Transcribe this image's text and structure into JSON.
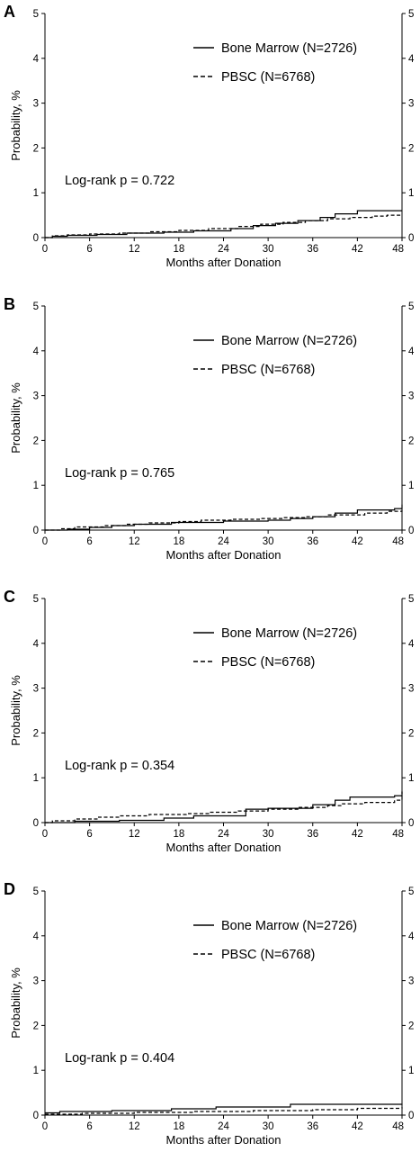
{
  "chart_data": [
    {
      "type": "line",
      "panel_label": "A",
      "xlabel": "Months after Donation",
      "ylabel": "Probability, %",
      "xlim": [
        0,
        48
      ],
      "ylim": [
        0,
        5
      ],
      "xticks": [
        "0",
        "6",
        "12",
        "18",
        "24",
        "30",
        "36",
        "42",
        "48"
      ],
      "yticks": [
        "0",
        "1",
        "2",
        "3",
        "4",
        "5"
      ],
      "annotation": "Log-rank p = 0.722",
      "legend_position": "top-right",
      "series": [
        {
          "name": "Bone Marrow (N=2726)",
          "style": "solid",
          "x": [
            0,
            1,
            3,
            7,
            11,
            16,
            20,
            25,
            28,
            31,
            34,
            37,
            39,
            42,
            48
          ],
          "y": [
            0,
            0.03,
            0.05,
            0.07,
            0.1,
            0.12,
            0.15,
            0.2,
            0.27,
            0.32,
            0.38,
            0.45,
            0.53,
            0.6,
            0.6
          ]
        },
        {
          "name": "PBSC (N=6768)",
          "style": "dashed",
          "x": [
            0,
            1,
            3,
            6,
            10,
            14,
            18,
            22,
            26,
            29,
            32,
            35,
            38,
            41,
            44,
            46,
            48
          ],
          "y": [
            0,
            0.04,
            0.06,
            0.08,
            0.1,
            0.13,
            0.16,
            0.2,
            0.25,
            0.3,
            0.34,
            0.38,
            0.42,
            0.45,
            0.48,
            0.5,
            0.5
          ]
        }
      ]
    },
    {
      "type": "line",
      "panel_label": "B",
      "xlabel": "Months after Donation",
      "ylabel": "Probability, %",
      "xlim": [
        0,
        48
      ],
      "ylim": [
        0,
        5
      ],
      "xticks": [
        "0",
        "6",
        "12",
        "18",
        "24",
        "30",
        "36",
        "42",
        "48"
      ],
      "yticks": [
        "0",
        "1",
        "2",
        "3",
        "4",
        "5"
      ],
      "annotation": "Log-rank p = 0.765",
      "legend_position": "top-right",
      "series": [
        {
          "name": "Bone Marrow (N=2726)",
          "style": "solid",
          "x": [
            0,
            3,
            6,
            9,
            12,
            17,
            24,
            30,
            33,
            36,
            39,
            42,
            47,
            48
          ],
          "y": [
            0,
            0.02,
            0.06,
            0.1,
            0.13,
            0.17,
            0.2,
            0.22,
            0.26,
            0.3,
            0.38,
            0.45,
            0.48,
            0.57
          ]
        },
        {
          "name": "PBSC (N=6768)",
          "style": "dashed",
          "x": [
            0,
            2,
            4,
            8,
            11,
            14,
            18,
            21,
            25,
            29,
            32,
            35,
            38,
            43,
            46,
            48
          ],
          "y": [
            0,
            0.03,
            0.07,
            0.1,
            0.13,
            0.16,
            0.19,
            0.22,
            0.24,
            0.26,
            0.28,
            0.3,
            0.34,
            0.38,
            0.42,
            0.45
          ]
        }
      ]
    },
    {
      "type": "line",
      "panel_label": "C",
      "xlabel": "Months after Donation",
      "ylabel": "Probability, %",
      "xlim": [
        0,
        48
      ],
      "ylim": [
        0,
        5
      ],
      "xticks": [
        "0",
        "6",
        "12",
        "18",
        "24",
        "30",
        "36",
        "42",
        "48"
      ],
      "yticks": [
        "0",
        "1",
        "2",
        "3",
        "4",
        "5"
      ],
      "annotation": "Log-rank p = 0.354",
      "legend_position": "top-right",
      "series": [
        {
          "name": "Bone Marrow (N=2726)",
          "style": "solid",
          "x": [
            0,
            4,
            10,
            16,
            20,
            27,
            30,
            36,
            39,
            41,
            47,
            48
          ],
          "y": [
            0,
            0.03,
            0.05,
            0.1,
            0.15,
            0.3,
            0.32,
            0.4,
            0.5,
            0.57,
            0.6,
            0.68
          ]
        },
        {
          "name": "PBSC (N=6768)",
          "style": "dashed",
          "x": [
            0,
            1,
            4,
            7,
            10,
            14,
            19,
            22,
            26,
            30,
            34,
            38,
            40,
            43,
            47,
            48
          ],
          "y": [
            0,
            0.04,
            0.08,
            0.12,
            0.15,
            0.18,
            0.2,
            0.23,
            0.26,
            0.3,
            0.34,
            0.38,
            0.42,
            0.45,
            0.5,
            0.7
          ]
        }
      ]
    },
    {
      "type": "line",
      "panel_label": "D",
      "xlabel": "Months after Donation",
      "ylabel": "Probability, %",
      "xlim": [
        0,
        48
      ],
      "ylim": [
        0,
        5
      ],
      "xticks": [
        "0",
        "6",
        "12",
        "18",
        "24",
        "30",
        "36",
        "42",
        "48"
      ],
      "yticks": [
        "0",
        "1",
        "2",
        "3",
        "4",
        "5"
      ],
      "annotation": "Log-rank p = 0.404",
      "legend_position": "top-right",
      "series": [
        {
          "name": "Bone Marrow (N=2726)",
          "style": "solid",
          "x": [
            0,
            2,
            9,
            17,
            23,
            33,
            48
          ],
          "y": [
            0.05,
            0.08,
            0.1,
            0.14,
            0.18,
            0.24,
            0.25
          ]
        },
        {
          "name": "PBSC (N=6768)",
          "style": "dashed",
          "x": [
            0,
            5,
            12,
            20,
            28,
            36,
            42,
            48
          ],
          "y": [
            0.02,
            0.04,
            0.06,
            0.08,
            0.1,
            0.12,
            0.15,
            0.18
          ]
        }
      ]
    }
  ]
}
